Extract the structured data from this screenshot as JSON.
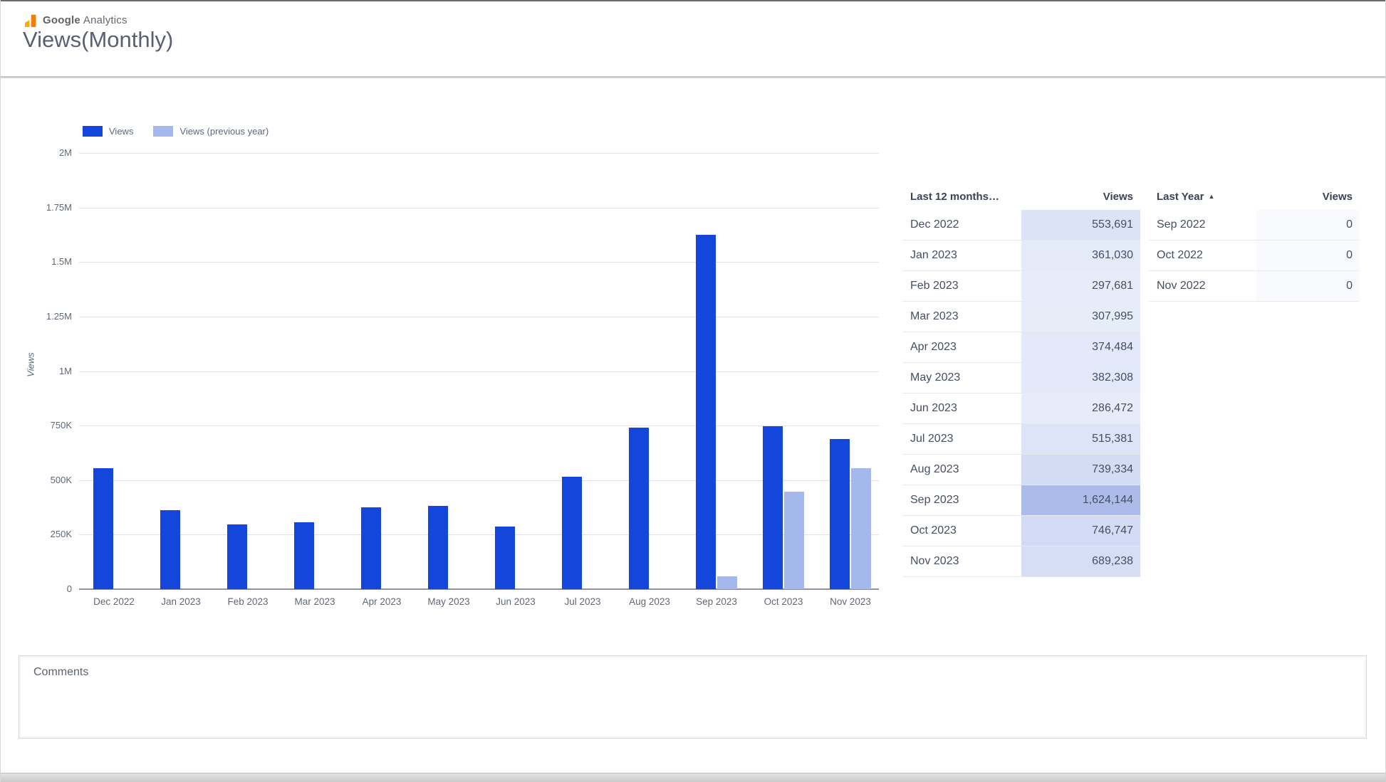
{
  "header": {
    "brand": {
      "google": "Google",
      "product": "Analytics"
    },
    "title": "Views(Monthly)"
  },
  "chart_data": {
    "type": "bar",
    "title": "Views(Monthly)",
    "xlabel": "",
    "ylabel": "Views",
    "categories": [
      "Dec 2022",
      "Jan 2023",
      "Feb 2023",
      "Mar 2023",
      "Apr 2023",
      "May 2023",
      "Jun 2023",
      "Jul 2023",
      "Aug 2023",
      "Sep 2023",
      "Oct 2023",
      "Nov 2023"
    ],
    "series": [
      {
        "name": "Views",
        "color": "#1446DC",
        "values": [
          553691,
          361030,
          297681,
          307995,
          374484,
          382308,
          286472,
          515381,
          739334,
          1624144,
          746747,
          689238
        ]
      },
      {
        "name": "Views (previous year)",
        "color": "#A4B8EE",
        "values": [
          0,
          0,
          0,
          0,
          0,
          0,
          0,
          0,
          0,
          59000,
          447000,
          555000
        ]
      }
    ],
    "ylim": [
      0,
      2000000
    ],
    "ytick_labels": [
      "0",
      "250K",
      "500K",
      "750K",
      "1M",
      "1.25M",
      "1.5M",
      "1.75M",
      "2M"
    ],
    "grid": true,
    "legend_position": "top-left"
  },
  "legend": {
    "items": [
      {
        "label": "Views",
        "color": "#1446DC"
      },
      {
        "label": "Views (previous year)",
        "color": "#A4B8EE"
      }
    ]
  },
  "tables": [
    {
      "dimension_header": "Last 12 months…",
      "metric_header": "Views",
      "sort_indicator": "",
      "rows": [
        {
          "label": "Dec 2022",
          "display": "553,691",
          "value": 553691
        },
        {
          "label": "Jan 2023",
          "display": "361,030",
          "value": 361030
        },
        {
          "label": "Feb 2023",
          "display": "297,681",
          "value": 297681
        },
        {
          "label": "Mar 2023",
          "display": "307,995",
          "value": 307995
        },
        {
          "label": "Apr 2023",
          "display": "374,484",
          "value": 374484
        },
        {
          "label": "May 2023",
          "display": "382,308",
          "value": 382308
        },
        {
          "label": "Jun 2023",
          "display": "286,472",
          "value": 286472
        },
        {
          "label": "Jul 2023",
          "display": "515,381",
          "value": 515381
        },
        {
          "label": "Aug 2023",
          "display": "739,334",
          "value": 739334
        },
        {
          "label": "Sep 2023",
          "display": "1,624,144",
          "value": 1624144
        },
        {
          "label": "Oct 2023",
          "display": "746,747",
          "value": 746747
        },
        {
          "label": "Nov 2023",
          "display": "689,238",
          "value": 689238
        }
      ]
    },
    {
      "dimension_header": "Last Year",
      "metric_header": "Views",
      "sort_indicator": "▲",
      "rows": [
        {
          "label": "Sep 2022",
          "display": "0",
          "value": 0
        },
        {
          "label": "Oct 2022",
          "display": "0",
          "value": 0
        },
        {
          "label": "Nov 2022",
          "display": "0",
          "value": 0
        }
      ]
    }
  ],
  "comments": {
    "label": "Comments",
    "value": ""
  },
  "colors": {
    "bar_primary": "#1446DC",
    "bar_secondary": "#A4B8EE",
    "heat_min": "#F5F7FD",
    "heat_max": "#ADBBEA",
    "logo_orange": "#F57E02",
    "logo_amber": "#F9AB00",
    "axis_text": "#5F6878",
    "table_text": "#454E62"
  }
}
